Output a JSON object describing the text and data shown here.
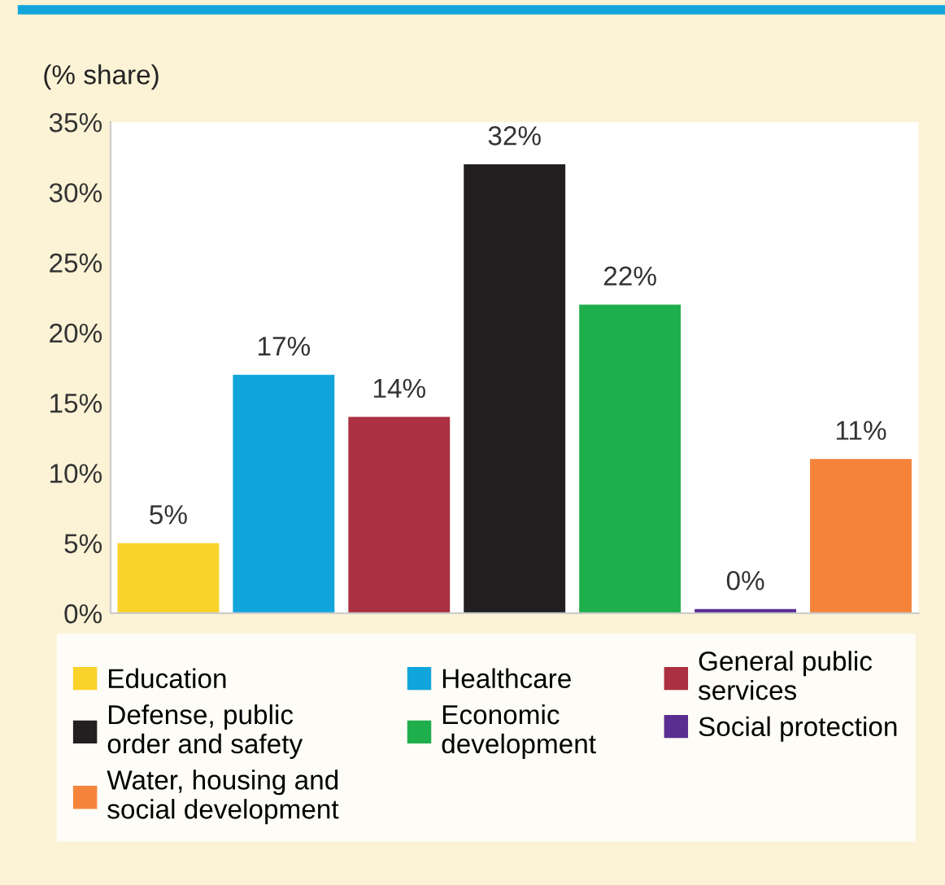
{
  "chart_data": {
    "type": "bar",
    "title": "(% share)",
    "categories": [
      null
    ],
    "series": [
      {
        "name": "Education",
        "color": "#f9d22b",
        "values": [
          5
        ],
        "value_labels": [
          "5%"
        ]
      },
      {
        "name": "Healthcare",
        "color": "#12a5dc",
        "values": [
          17
        ],
        "value_labels": [
          "17%"
        ]
      },
      {
        "name": "General public services",
        "color": "#ab3041",
        "values": [
          14
        ],
        "value_labels": [
          "14%"
        ]
      },
      {
        "name": "Defense, public order and safety",
        "color": "#231f20",
        "values": [
          32
        ],
        "value_labels": [
          "32%"
        ]
      },
      {
        "name": "Economic development",
        "color": "#1fae4c",
        "values": [
          22
        ],
        "value_labels": [
          "22%"
        ]
      },
      {
        "name": "Social protection",
        "color": "#5a2d91",
        "values": [
          0.3
        ],
        "value_labels": [
          "0%"
        ]
      },
      {
        "name": "Water, housing and social development",
        "color": "#f5843a",
        "values": [
          11
        ],
        "value_labels": [
          "11%"
        ]
      }
    ],
    "ylim": [
      0,
      35
    ],
    "yticks": [
      {
        "value": 0,
        "label": "0%"
      },
      {
        "value": 5,
        "label": "5%"
      },
      {
        "value": 10,
        "label": "10%"
      },
      {
        "value": 15,
        "label": "15%"
      },
      {
        "value": 20,
        "label": "20%"
      },
      {
        "value": 25,
        "label": "25%"
      },
      {
        "value": 30,
        "label": "30%"
      },
      {
        "value": 35,
        "label": "35%"
      }
    ],
    "tick_labels": "y",
    "legend": "bottom"
  }
}
